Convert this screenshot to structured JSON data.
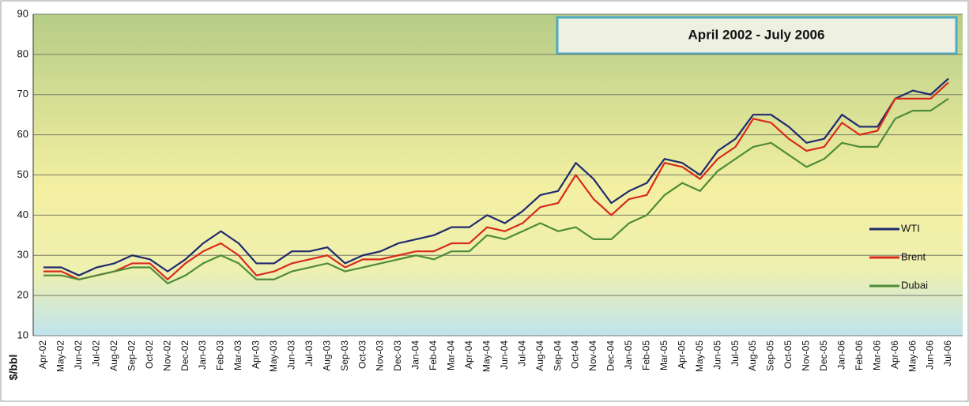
{
  "chart_data": {
    "type": "line",
    "title": "April 2002 - July 2006",
    "y_label": "$/bbl",
    "categories": [
      "Apr-02",
      "May-02",
      "Jun-02",
      "Jul-02",
      "Aug-02",
      "Sep-02",
      "Oct-02",
      "Nov-02",
      "Dec-02",
      "Jan-03",
      "Feb-03",
      "Mar-03",
      "Apr-03",
      "May-03",
      "Jun-03",
      "Jul-03",
      "Aug-03",
      "Sep-03",
      "Oct-03",
      "Nov-03",
      "Dec-03",
      "Jan-04",
      "Feb-04",
      "Mar-04",
      "Apr-04",
      "May-04",
      "Jun-04",
      "Jul-04",
      "Aug-04",
      "Sep-04",
      "Oct-04",
      "Nov-04",
      "Dec-04",
      "Jan-05",
      "Feb-05",
      "Mar-05",
      "Apr-05",
      "May-05",
      "Jun-05",
      "Jul-05",
      "Aug-05",
      "Sep-05",
      "Oct-05",
      "Nov-05",
      "Dec-05",
      "Jan-06",
      "Feb-06",
      "Mar-06",
      "Apr-06",
      "May-06",
      "Jun-06",
      "Jul-06"
    ],
    "series": [
      {
        "name": "WTI",
        "color": "#1f2a6e",
        "values": [
          27,
          27,
          25,
          27,
          28,
          30,
          29,
          26,
          29,
          33,
          36,
          33,
          28,
          28,
          31,
          31,
          32,
          28,
          30,
          31,
          33,
          34,
          35,
          37,
          37,
          40,
          38,
          41,
          45,
          46,
          53,
          49,
          43,
          46,
          48,
          54,
          53,
          50,
          56,
          59,
          65,
          65,
          62,
          58,
          59,
          65,
          62,
          62,
          69,
          71,
          70,
          74
        ]
      },
      {
        "name": "Brent",
        "color": "#d92a1c",
        "values": [
          26,
          26,
          24,
          25,
          26,
          28,
          28,
          24,
          28,
          31,
          33,
          30,
          25,
          26,
          28,
          29,
          30,
          27,
          29,
          29,
          30,
          31,
          31,
          33,
          33,
          37,
          36,
          38,
          42,
          43,
          50,
          44,
          40,
          44,
          45,
          53,
          52,
          49,
          54,
          57,
          64,
          63,
          59,
          56,
          57,
          63,
          60,
          61,
          69,
          69,
          69,
          73
        ]
      },
      {
        "name": "Dubai",
        "color": "#4e8c3a",
        "values": [
          25,
          25,
          24,
          25,
          26,
          27,
          27,
          23,
          25,
          28,
          30,
          28,
          24,
          24,
          26,
          27,
          28,
          26,
          27,
          28,
          29,
          30,
          29,
          31,
          31,
          35,
          34,
          36,
          38,
          36,
          37,
          34,
          34,
          38,
          40,
          45,
          48,
          46,
          51,
          54,
          57,
          58,
          55,
          52,
          54,
          58,
          57,
          57,
          64,
          66,
          66,
          69
        ]
      }
    ],
    "ylim": [
      10,
      90
    ],
    "yticks": [
      10,
      20,
      30,
      40,
      50,
      60,
      70,
      80,
      90
    ],
    "grid": true,
    "legend": "right"
  }
}
